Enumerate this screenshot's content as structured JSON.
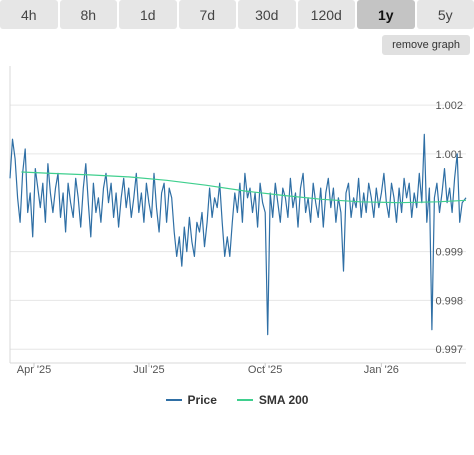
{
  "tabs": [
    {
      "label": "4h",
      "active": false
    },
    {
      "label": "8h",
      "active": false
    },
    {
      "label": "1d",
      "active": false
    },
    {
      "label": "7d",
      "active": false
    },
    {
      "label": "30d",
      "active": false
    },
    {
      "label": "120d",
      "active": false
    },
    {
      "label": "1y",
      "active": true
    },
    {
      "label": "5y",
      "active": false
    }
  ],
  "remove_graph_label": "remove graph",
  "colors": {
    "price": "#2f6fa5",
    "sma": "#3fcf8e",
    "grid": "#e6e6e6"
  },
  "chart_data": {
    "type": "line",
    "title": "",
    "xlabel": "",
    "ylabel": "",
    "x_range": [
      "2025-03-13",
      "2026-03-09"
    ],
    "ylim": [
      0.9968,
      1.0028
    ],
    "x_ticks": [
      {
        "date": "2025-04-01",
        "label": "Apr '25"
      },
      {
        "date": "2025-07-01",
        "label": "Jul '25"
      },
      {
        "date": "2025-10-01",
        "label": "Oct '25"
      },
      {
        "date": "2026-01-01",
        "label": "Jan '26"
      }
    ],
    "y_ticks": [
      0.997,
      0.998,
      0.999,
      1.001,
      1.002
    ],
    "legend_position": "bottom-center",
    "grid": true,
    "series": [
      {
        "name": "Price",
        "type": "line",
        "points": [
          [
            "2025-03-13",
            1.0005
          ],
          [
            "2025-03-15",
            1.0013
          ],
          [
            "2025-03-17",
            1.0009
          ],
          [
            "2025-03-19",
            1.0001
          ],
          [
            "2025-03-21",
            0.9996
          ],
          [
            "2025-03-23",
            1.0006
          ],
          [
            "2025-03-25",
            1.0011
          ],
          [
            "2025-03-27",
            0.9998
          ],
          [
            "2025-03-29",
            1.0002
          ],
          [
            "2025-03-31",
            0.9993
          ],
          [
            "2025-04-02",
            1.0007
          ],
          [
            "2025-04-04",
            1.0003
          ],
          [
            "2025-04-06",
            0.9999
          ],
          [
            "2025-04-08",
            1.0004
          ],
          [
            "2025-04-10",
            0.9996
          ],
          [
            "2025-04-12",
            1.0008
          ],
          [
            "2025-04-14",
            1.0002
          ],
          [
            "2025-04-16",
            0.9998
          ],
          [
            "2025-04-18",
            1.0003
          ],
          [
            "2025-04-20",
            1.0006
          ],
          [
            "2025-04-22",
            0.9997
          ],
          [
            "2025-04-24",
            1.0002
          ],
          [
            "2025-04-26",
            0.9994
          ],
          [
            "2025-04-28",
            1.0004
          ],
          [
            "2025-04-30",
            1.0
          ],
          [
            "2025-05-02",
            0.9997
          ],
          [
            "2025-05-04",
            1.0005
          ],
          [
            "2025-05-06",
            1.0001
          ],
          [
            "2025-05-08",
            0.9995
          ],
          [
            "2025-05-10",
            1.0003
          ],
          [
            "2025-05-12",
            1.0008
          ],
          [
            "2025-05-14",
            1.0
          ],
          [
            "2025-05-16",
            0.9993
          ],
          [
            "2025-05-18",
            1.0004
          ],
          [
            "2025-05-20",
            0.9998
          ],
          [
            "2025-05-22",
            1.0001
          ],
          [
            "2025-05-24",
            0.9996
          ],
          [
            "2025-05-26",
            1.0003
          ],
          [
            "2025-05-28",
            1.0006
          ],
          [
            "2025-05-30",
            1.0
          ],
          [
            "2025-06-01",
            1.0004
          ],
          [
            "2025-06-03",
            0.9997
          ],
          [
            "2025-06-05",
            1.0002
          ],
          [
            "2025-06-07",
            0.9995
          ],
          [
            "2025-06-09",
            1.0001
          ],
          [
            "2025-06-11",
            1.0005
          ],
          [
            "2025-06-13",
            0.9999
          ],
          [
            "2025-06-15",
            1.0003
          ],
          [
            "2025-06-17",
            0.9997
          ],
          [
            "2025-06-19",
            1.0001
          ],
          [
            "2025-06-21",
            1.0006
          ],
          [
            "2025-06-23",
            0.9998
          ],
          [
            "2025-06-25",
            1.0002
          ],
          [
            "2025-06-27",
            0.9996
          ],
          [
            "2025-06-29",
            1.0004
          ],
          [
            "2025-07-01",
            1.0
          ],
          [
            "2025-07-03",
            0.9997
          ],
          [
            "2025-07-05",
            1.0006
          ],
          [
            "2025-07-07",
            0.9999
          ],
          [
            "2025-07-09",
            0.9994
          ],
          [
            "2025-07-11",
            1.0002
          ],
          [
            "2025-07-13",
            1.0004
          ],
          [
            "2025-07-15",
            0.9996
          ],
          [
            "2025-07-17",
            1.0003
          ],
          [
            "2025-07-19",
            1.0001
          ],
          [
            "2025-07-21",
            0.9994
          ],
          [
            "2025-07-23",
            0.9989
          ],
          [
            "2025-07-25",
            0.9993
          ],
          [
            "2025-07-27",
            0.9987
          ],
          [
            "2025-07-29",
            0.9995
          ],
          [
            "2025-07-31",
            0.999
          ],
          [
            "2025-08-02",
            0.9997
          ],
          [
            "2025-08-04",
            0.9992
          ],
          [
            "2025-08-06",
            0.9989
          ],
          [
            "2025-08-08",
            0.9996
          ],
          [
            "2025-08-10",
            0.9994
          ],
          [
            "2025-08-12",
            0.9998
          ],
          [
            "2025-08-14",
            0.9991
          ],
          [
            "2025-08-16",
            0.9996
          ],
          [
            "2025-08-18",
            1.0003
          ],
          [
            "2025-08-20",
            0.9997
          ],
          [
            "2025-08-22",
            1.0001
          ],
          [
            "2025-08-24",
            0.9999
          ],
          [
            "2025-08-26",
            1.0004
          ],
          [
            "2025-08-28",
            0.9996
          ],
          [
            "2025-08-30",
            0.9989
          ],
          [
            "2025-09-01",
            0.9993
          ],
          [
            "2025-09-03",
            0.9989
          ],
          [
            "2025-09-05",
            0.9996
          ],
          [
            "2025-09-07",
            1.0002
          ],
          [
            "2025-09-09",
            0.9998
          ],
          [
            "2025-09-11",
            1.0004
          ],
          [
            "2025-09-13",
            0.9996
          ],
          [
            "2025-09-15",
            1.0006
          ],
          [
            "2025-09-17",
            1.0001
          ],
          [
            "2025-09-19",
            1.0003
          ],
          [
            "2025-09-21",
            0.9998
          ],
          [
            "2025-09-23",
            1.0002
          ],
          [
            "2025-09-25",
            0.9995
          ],
          [
            "2025-09-27",
            1.0004
          ],
          [
            "2025-09-29",
            1.0
          ],
          [
            "2025-10-01",
            0.9998
          ],
          [
            "2025-10-03",
            0.9973
          ],
          [
            "2025-10-05",
            1.0002
          ],
          [
            "2025-10-07",
            0.9997
          ],
          [
            "2025-10-09",
            1.0004
          ],
          [
            "2025-10-11",
            1.0
          ],
          [
            "2025-10-13",
            0.9996
          ],
          [
            "2025-10-15",
            1.0003
          ],
          [
            "2025-10-17",
            1.0001
          ],
          [
            "2025-10-19",
            0.9997
          ],
          [
            "2025-10-21",
            1.0005
          ],
          [
            "2025-10-23",
            0.9999
          ],
          [
            "2025-10-25",
            1.0002
          ],
          [
            "2025-10-27",
            0.9995
          ],
          [
            "2025-10-29",
            1.0003
          ],
          [
            "2025-10-31",
            1.0006
          ],
          [
            "2025-11-02",
            0.9998
          ],
          [
            "2025-11-04",
            1.0001
          ],
          [
            "2025-11-06",
            0.9996
          ],
          [
            "2025-11-08",
            1.0004
          ],
          [
            "2025-11-10",
            1.0
          ],
          [
            "2025-11-12",
            0.9997
          ],
          [
            "2025-11-14",
            1.0003
          ],
          [
            "2025-11-16",
            0.9995
          ],
          [
            "2025-11-18",
            1.0002
          ],
          [
            "2025-11-20",
            1.0005
          ],
          [
            "2025-11-22",
            0.9999
          ],
          [
            "2025-11-24",
            1.0003
          ],
          [
            "2025-11-26",
            0.9996
          ],
          [
            "2025-11-28",
            1.0001
          ],
          [
            "2025-11-30",
            0.9998
          ],
          [
            "2025-12-02",
            0.9986
          ],
          [
            "2025-12-04",
            1.0002
          ],
          [
            "2025-12-06",
            1.0004
          ],
          [
            "2025-12-08",
            0.9997
          ],
          [
            "2025-12-10",
            1.0001
          ],
          [
            "2025-12-12",
            0.9999
          ],
          [
            "2025-12-14",
            1.0005
          ],
          [
            "2025-12-16",
            0.9997
          ],
          [
            "2025-12-18",
            1.0002
          ],
          [
            "2025-12-20",
            0.9998
          ],
          [
            "2025-12-22",
            1.0004
          ],
          [
            "2025-12-24",
            1.0001
          ],
          [
            "2025-12-26",
            0.9997
          ],
          [
            "2025-12-28",
            1.0003
          ],
          [
            "2025-12-30",
            0.9999
          ],
          [
            "2026-01-01",
            1.0002
          ],
          [
            "2026-01-03",
            1.0006
          ],
          [
            "2026-01-05",
            1.0
          ],
          [
            "2026-01-07",
            0.9997
          ],
          [
            "2026-01-09",
            1.0004
          ],
          [
            "2026-01-11",
            1.0001
          ],
          [
            "2026-01-13",
            0.9996
          ],
          [
            "2026-01-15",
            1.0003
          ],
          [
            "2026-01-17",
            0.9998
          ],
          [
            "2026-01-19",
            1.0005
          ],
          [
            "2026-01-21",
            1.0001
          ],
          [
            "2026-01-23",
            1.0004
          ],
          [
            "2026-01-25",
            0.9997
          ],
          [
            "2026-01-27",
            1.0002
          ],
          [
            "2026-01-29",
            0.9999
          ],
          [
            "2026-01-31",
            1.0006
          ],
          [
            "2026-02-02",
            1.0
          ],
          [
            "2026-02-04",
            1.0014
          ],
          [
            "2026-02-06",
            0.9996
          ],
          [
            "2026-02-08",
            1.0003
          ],
          [
            "2026-02-10",
            0.9974
          ],
          [
            "2026-02-12",
            1.0001
          ],
          [
            "2026-02-14",
            1.0004
          ],
          [
            "2026-02-16",
            0.9998
          ],
          [
            "2026-02-18",
            1.0002
          ],
          [
            "2026-02-20",
            1.0007
          ],
          [
            "2026-02-22",
            1.0
          ],
          [
            "2026-02-24",
            1.0003
          ],
          [
            "2026-02-26",
            0.9998
          ],
          [
            "2026-02-28",
            1.0005
          ],
          [
            "2026-03-02",
            1.001
          ],
          [
            "2026-03-04",
            0.9996
          ],
          [
            "2026-03-06",
            1.0
          ],
          [
            "2026-03-09",
            1.0001
          ]
        ]
      },
      {
        "name": "SMA 200",
        "type": "line",
        "points": [
          [
            "2025-03-22",
            1.00063
          ],
          [
            "2025-04-15",
            1.0006
          ],
          [
            "2025-05-15",
            1.00057
          ],
          [
            "2025-06-15",
            1.00053
          ],
          [
            "2025-07-15",
            1.00046
          ],
          [
            "2025-08-15",
            1.00036
          ],
          [
            "2025-09-15",
            1.00024
          ],
          [
            "2025-10-15",
            1.00015
          ],
          [
            "2025-11-15",
            1.00007
          ],
          [
            "2025-12-15",
            1.00002
          ],
          [
            "2026-01-15",
            1.0
          ],
          [
            "2026-02-15",
            1.00002
          ],
          [
            "2026-03-09",
            1.00005
          ]
        ]
      }
    ]
  },
  "legend": [
    {
      "label": "Price"
    },
    {
      "label": "SMA 200"
    }
  ]
}
